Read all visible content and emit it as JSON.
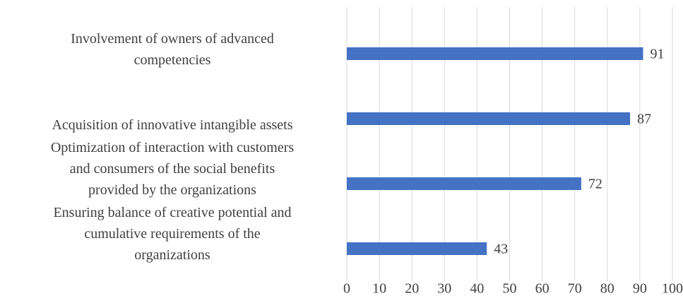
{
  "chart_data": {
    "type": "barh",
    "categories": [
      "Involvement of owners of advanced\ncompetencies",
      "Acquisition of innovative intangible assets",
      "Optimization of interaction with customers\nand consumers of the social benefits\nprovided by the organizations",
      "Ensuring balance of creative potential and\ncumulative requirements of the\norganizations"
    ],
    "values": [
      91,
      87,
      72,
      43
    ],
    "color": "#4472c4",
    "xlim": [
      0,
      100
    ],
    "xticks": [
      0,
      10,
      20,
      30,
      40,
      50,
      60,
      70,
      80,
      90,
      100
    ],
    "grid": true
  }
}
